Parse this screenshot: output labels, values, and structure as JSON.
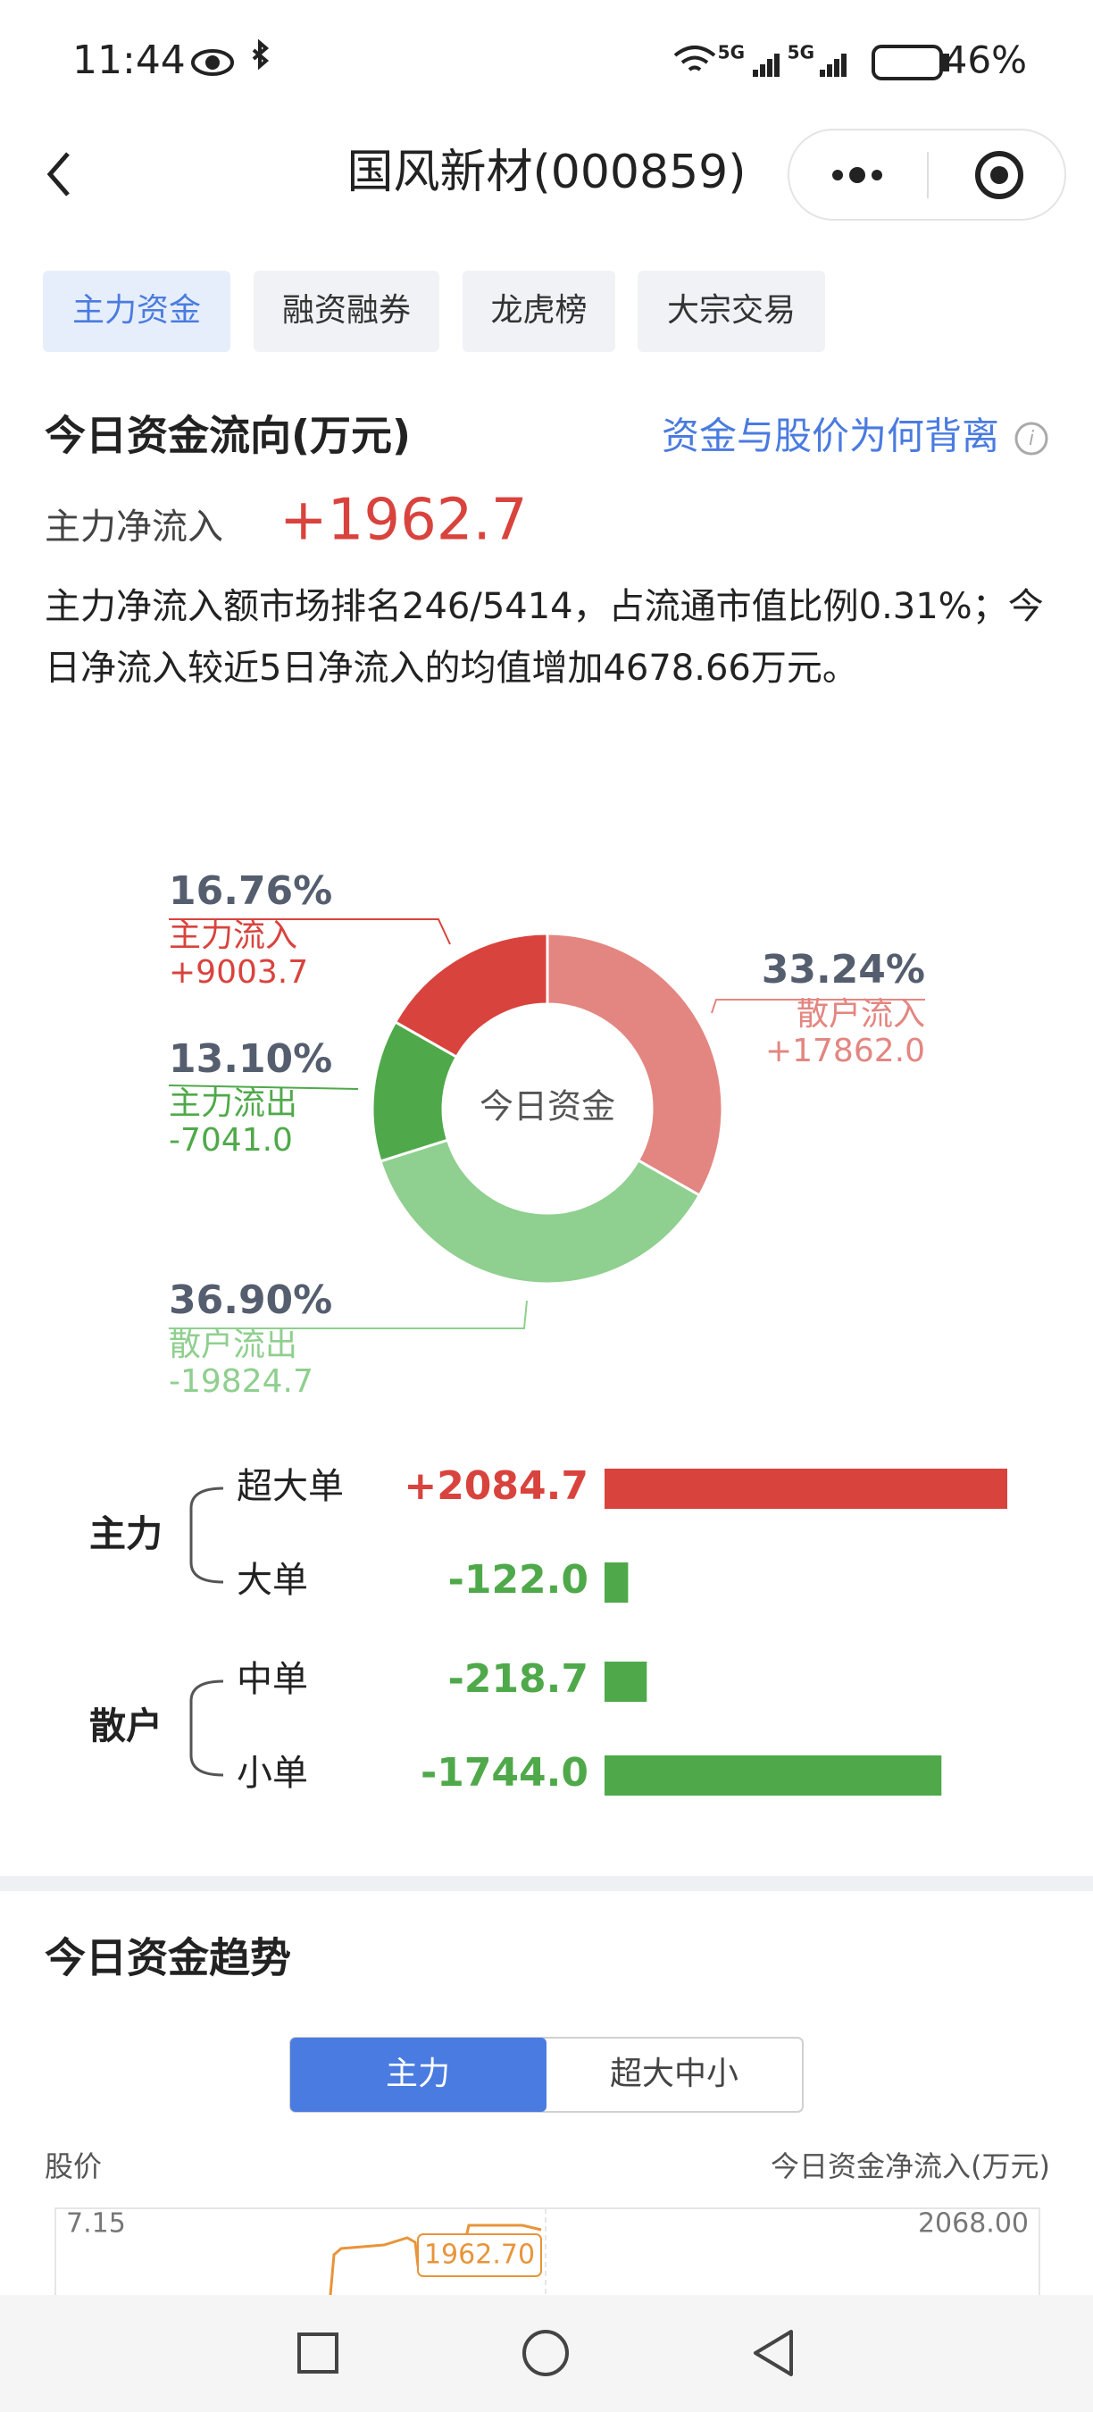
{
  "status_bar": {
    "time": "11:44",
    "signal_labels": [
      "5G",
      "5G"
    ],
    "battery": "46%"
  },
  "nav": {
    "title": "国风新材(000859)"
  },
  "tabs": [
    "主力资金",
    "融资融券",
    "龙虎榜",
    "大宗交易"
  ],
  "flow": {
    "title": "今日资金流向(万元)",
    "link": "资金与股价为何背离",
    "net_label": "主力净流入",
    "net_value": "+1962.7",
    "summary": "主力净流入额市场排名246/5414，占流通市值比例0.31%；今日净流入较近5日净流入的均值增加4678.66万元。"
  },
  "chart_data": [
    {
      "type": "pie",
      "center_label": "今日资金",
      "categories": [
        "散户流入",
        "散户流出",
        "主力流出",
        "主力流入"
      ],
      "values": [
        33.24,
        36.9,
        13.1,
        16.76
      ],
      "value_labels": [
        "33.24%",
        "36.90%",
        "13.10%",
        "16.76%"
      ],
      "amounts": [
        "+17862.0",
        "-19824.7",
        "-7041.0",
        "+9003.7"
      ],
      "colors": [
        "#e38681",
        "#8fcf8f",
        "#4fa94a",
        "#d9433d"
      ]
    },
    {
      "type": "bar",
      "orientation": "horizontal",
      "groups": [
        "主力",
        "散户"
      ],
      "categories": [
        "超大单",
        "大单",
        "中单",
        "小单"
      ],
      "values": [
        2084.7,
        -122.0,
        -218.7,
        -1744.0
      ],
      "value_labels": [
        "+2084.7",
        "-122.0",
        "-218.7",
        "-1744.0"
      ],
      "colors": {
        "positive": "#d9433d",
        "negative": "#4fa94a"
      }
    }
  ],
  "trend": {
    "title": "今日资金趋势",
    "toggle": [
      "主力",
      "超大中小"
    ],
    "left_axis_title": "股价",
    "right_axis_title": "今日资金净流入(万元)",
    "left_top": "7.15",
    "right_top": "2068.00",
    "last_value": "1962.70"
  }
}
